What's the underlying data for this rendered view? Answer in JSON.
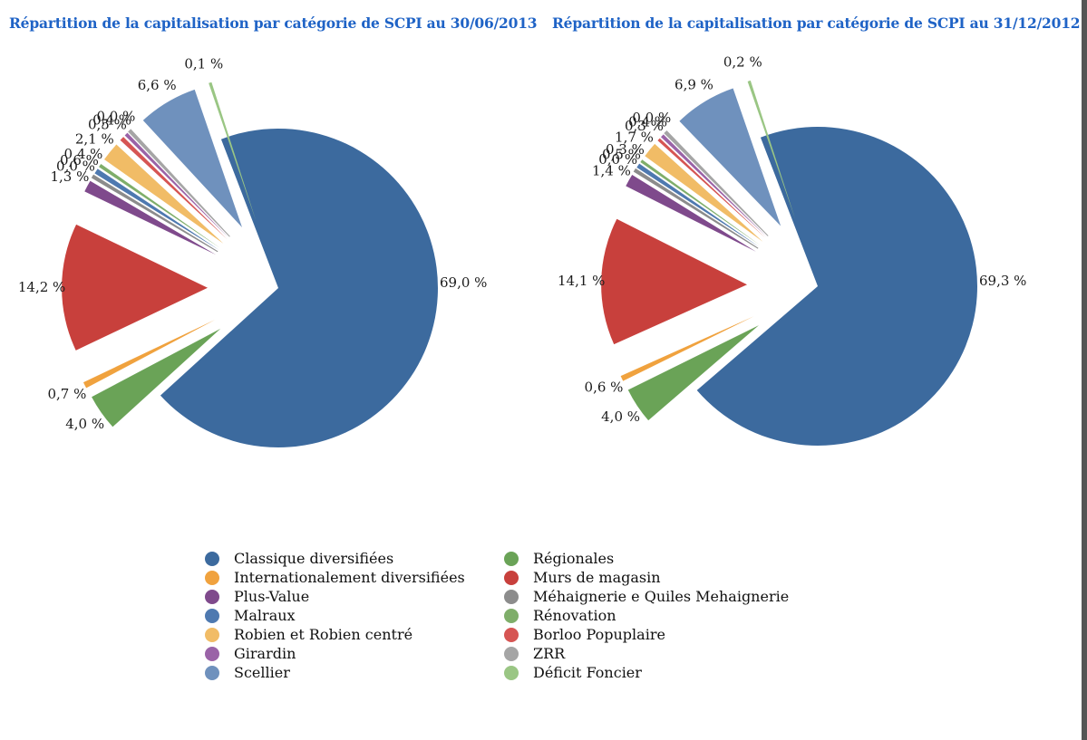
{
  "chart_data": [
    {
      "type": "pie",
      "title": "Répartition de la capitalisation par catégorie de SCPI au 30/06/2013",
      "slices": [
        {
          "name": "Classique diversifiées",
          "value": 69.0,
          "label": "69,0 %"
        },
        {
          "name": "Régionales",
          "value": 4.0,
          "label": "4,0 %"
        },
        {
          "name": "Internationalement diversifiées",
          "value": 0.7,
          "label": "0,7 %"
        },
        {
          "name": "Murs de magasin",
          "value": 14.2,
          "label": "14,2 %"
        },
        {
          "name": "Plus-Value",
          "value": 1.3,
          "label": "1,3 %"
        },
        {
          "name": "Méhaignerie e Quiles Mehaignerie",
          "value": 0.0,
          "label": "0,0 %"
        },
        {
          "name": "Malraux",
          "value": 0.6,
          "label": "0,6 %"
        },
        {
          "name": "Rénovation",
          "value": 0.4,
          "label": "0,4 %"
        },
        {
          "name": "Robien et Robien centré",
          "value": 2.1,
          "label": "2,1 %"
        },
        {
          "name": "Borloo Popuplaire",
          "value": 0.5,
          "label": "0,5 %"
        },
        {
          "name": "Girardin",
          "value": 0.4,
          "label": "0,4 %"
        },
        {
          "name": "ZRR",
          "value": 0.0,
          "label": "0,0 %"
        },
        {
          "name": "Scellier",
          "value": 6.6,
          "label": "6,6 %"
        },
        {
          "name": "Déficit Foncier",
          "value": 0.1,
          "label": "0,1 %"
        }
      ]
    },
    {
      "type": "pie",
      "title": "Répartition de la capitalisation par catégorie de SCPI au 31/12/2012",
      "slices": [
        {
          "name": "Classique diversifiées",
          "value": 69.3,
          "label": "69,3 %"
        },
        {
          "name": "Régionales",
          "value": 4.0,
          "label": "4,0 %"
        },
        {
          "name": "Internationalement diversifiées",
          "value": 0.6,
          "label": "0,6 %"
        },
        {
          "name": "Murs de magasin",
          "value": 14.1,
          "label": "14,1 %"
        },
        {
          "name": "Plus-Value",
          "value": 1.4,
          "label": "1,4 %"
        },
        {
          "name": "Méhaignerie e Quiles Mehaignerie",
          "value": 0.0,
          "label": "0,0 %"
        },
        {
          "name": "Malraux",
          "value": 0.5,
          "label": "0,5 %"
        },
        {
          "name": "Rénovation",
          "value": 0.3,
          "label": "0,3 %"
        },
        {
          "name": "Robien et Robien centré",
          "value": 1.7,
          "label": "1,7 %"
        },
        {
          "name": "Borloo Popuplaire",
          "value": 0.3,
          "label": "0,3 %"
        },
        {
          "name": "Girardin",
          "value": 0.4,
          "label": "0,4 %"
        },
        {
          "name": "ZRR",
          "value": 0.0,
          "label": "0,0 %"
        },
        {
          "name": "Scellier",
          "value": 6.9,
          "label": "6,9 %"
        },
        {
          "name": "Déficit Foncier",
          "value": 0.2,
          "label": "0,2 %"
        }
      ]
    }
  ],
  "legend": [
    {
      "name": "Classique diversifiées",
      "color": "#3c6a9e"
    },
    {
      "name": "Régionales",
      "color": "#6aa357"
    },
    {
      "name": "Internationalement diversifiées",
      "color": "#f0a23e"
    },
    {
      "name": "Murs de magasin",
      "color": "#c8403c"
    },
    {
      "name": "Plus-Value",
      "color": "#7f4a8c"
    },
    {
      "name": "Méhaignerie e Quiles Mehaignerie",
      "color": "#8c8c8c"
    },
    {
      "name": "Malraux",
      "color": "#4e79b0"
    },
    {
      "name": "Rénovation",
      "color": "#7fae6a"
    },
    {
      "name": "Robien et Robien centré",
      "color": "#f1bc66"
    },
    {
      "name": "Borloo Popuplaire",
      "color": "#d65553"
    },
    {
      "name": "Girardin",
      "color": "#9a63a7"
    },
    {
      "name": "ZRR",
      "color": "#a5a5a5"
    },
    {
      "name": "Scellier",
      "color": "#6f91bd"
    },
    {
      "name": "Déficit Foncier",
      "color": "#9ac684"
    }
  ]
}
